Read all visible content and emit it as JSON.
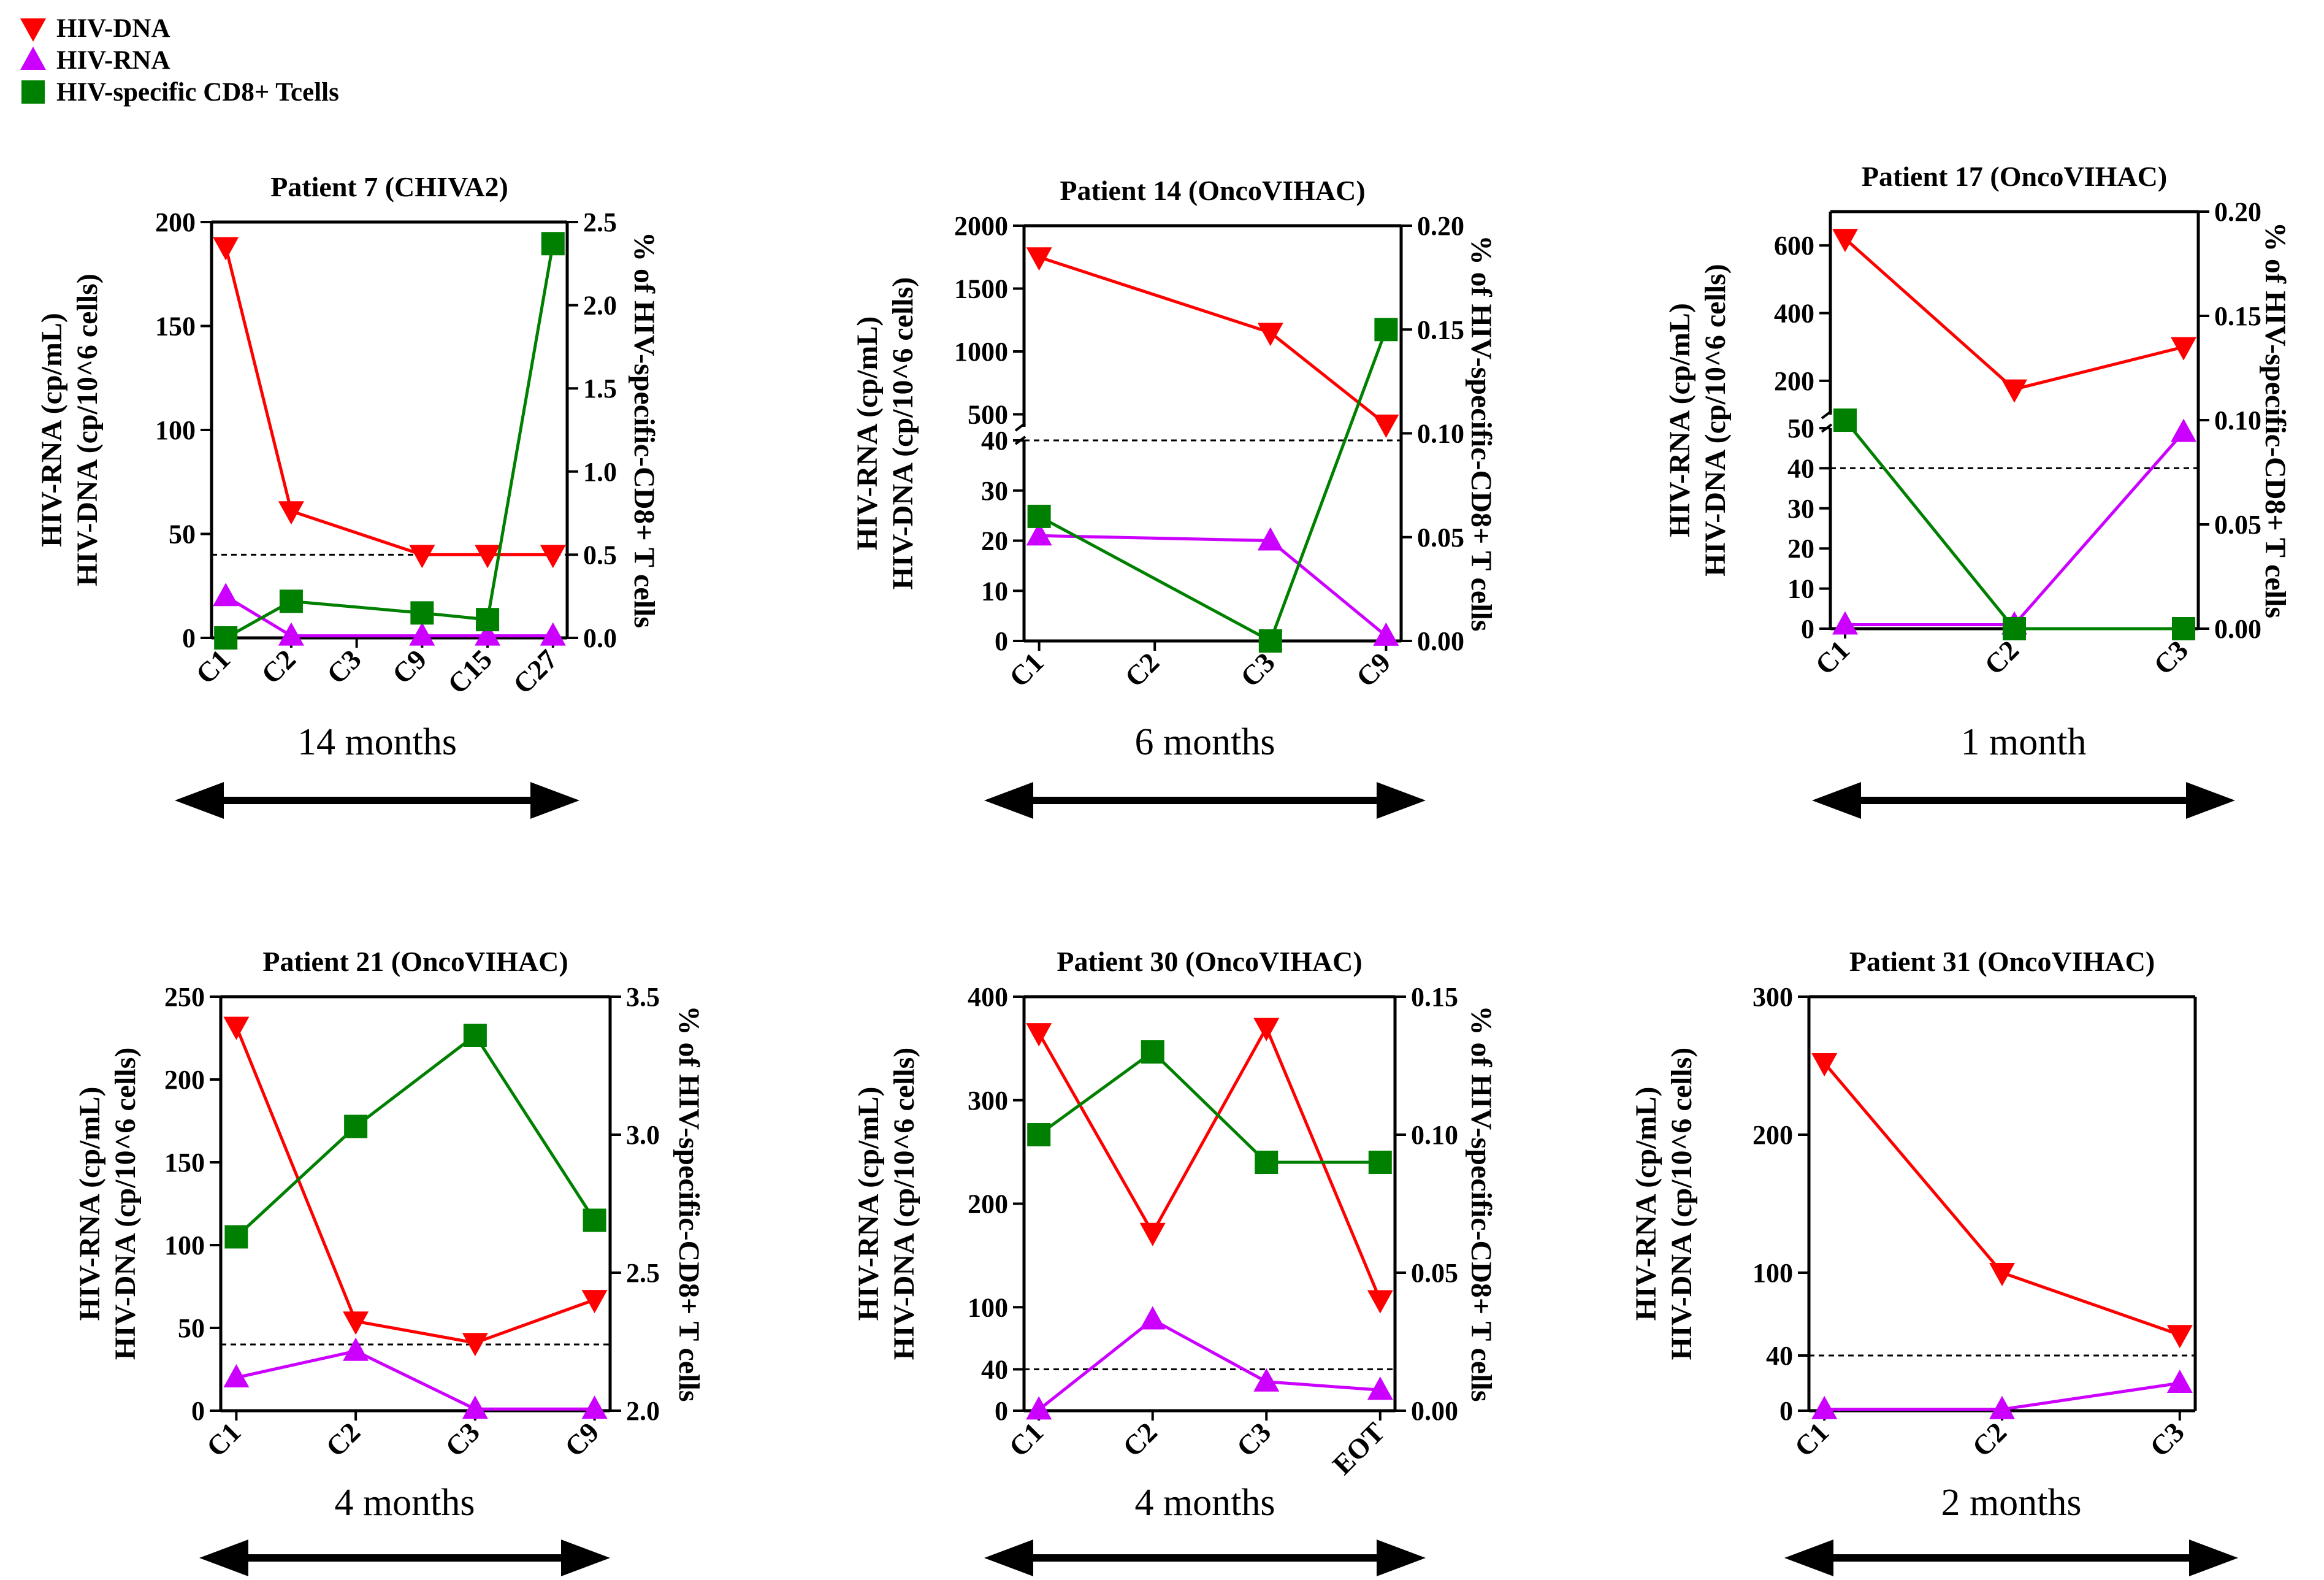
{
  "legend": [
    {
      "label": "HIV-DNA",
      "color": "#ff0000",
      "marker": "triangle-down"
    },
    {
      "label": "HIV-RNA",
      "color": "#cc00ff",
      "marker": "triangle-up"
    },
    {
      "label": "HIV-specific CD8+ Tcells",
      "color": "#008000",
      "marker": "square"
    }
  ],
  "chart_data": [
    {
      "type": "line",
      "title": "Patient 7 (CHIVA2)",
      "ylabel": [
        "HIV-RNA (cp/mL)",
        "HIV-DNA (cp/10^6 cells)"
      ],
      "y2label": "% of HIV-specific-CD8+ T cells",
      "categories": [
        "C1",
        "C2",
        "C3",
        "C9",
        "C15",
        "C27"
      ],
      "y_axis": {
        "broken": false,
        "ticks": [
          0,
          50,
          100,
          150,
          200
        ],
        "lim": [
          0,
          200
        ]
      },
      "y2_axis": {
        "ticks": [
          "0.0",
          "0.5",
          "1.0",
          "1.5",
          "2.0",
          "2.5"
        ],
        "lim": [
          0,
          2.5
        ]
      },
      "threshold": 40,
      "series": [
        {
          "name": "HIV-DNA",
          "axis": "left",
          "points": [
            [
              0,
              188
            ],
            [
              1,
              61
            ],
            [
              3,
              40
            ],
            [
              4,
              40
            ],
            [
              5,
              40
            ]
          ]
        },
        {
          "name": "HIV-RNA",
          "axis": "left",
          "points": [
            [
              0,
              20
            ],
            [
              1,
              1
            ],
            [
              3,
              1
            ],
            [
              4,
              1
            ],
            [
              5,
              1
            ]
          ]
        },
        {
          "name": "HIV-specific CD8+ Tcells",
          "axis": "right",
          "points": [
            [
              0,
              0.0
            ],
            [
              1,
              0.22
            ],
            [
              3,
              0.15
            ],
            [
              4,
              0.11
            ],
            [
              5,
              2.37
            ]
          ]
        }
      ],
      "duration": "14 months"
    },
    {
      "type": "line",
      "title": "Patient 14 (OncoVIHAC)",
      "ylabel": [
        "HIV-RNA (cp/mL)",
        "HIV-DNA (cp/10^6 cells)"
      ],
      "y2label": "% of HIV-specific-CD8+ T cells",
      "categories": [
        "C1",
        "C2",
        "C3",
        "C9"
      ],
      "y_axis": {
        "broken": true,
        "lower_ticks": [
          0,
          10,
          20,
          30,
          40
        ],
        "lower_lim": [
          0,
          40
        ],
        "upper_ticks": [
          500,
          1000,
          1500,
          2000
        ],
        "upper_lim": [
          400,
          2000
        ]
      },
      "y2_axis": {
        "ticks": [
          "0.00",
          "0.05",
          "0.10",
          "0.15",
          "0.20"
        ],
        "lim": [
          0,
          0.2
        ]
      },
      "threshold": 40,
      "series": [
        {
          "name": "HIV-DNA",
          "axis": "left",
          "points": [
            [
              0,
              1750
            ],
            [
              2,
              1150
            ],
            [
              3,
              420
            ]
          ]
        },
        {
          "name": "HIV-RNA",
          "axis": "left",
          "points": [
            [
              0,
              21
            ],
            [
              2,
              20
            ],
            [
              3,
              1
            ]
          ]
        },
        {
          "name": "HIV-specific CD8+ Tcells",
          "axis": "right",
          "points": [
            [
              0,
              0.06
            ],
            [
              2,
              0.0
            ],
            [
              3,
              0.15
            ]
          ]
        }
      ],
      "duration": "6 months"
    },
    {
      "type": "line",
      "title": "Patient 17 (OncoVIHAC)",
      "ylabel": [
        "HIV-RNA (cp/mL)",
        "HIV-DNA (cp/10^6 cells)"
      ],
      "y2label": "% of HIV-specific-CD8+ T cells",
      "categories": [
        "C1",
        "C2",
        "C3"
      ],
      "y_axis": {
        "broken": true,
        "lower_ticks": [
          0,
          10,
          20,
          30,
          40,
          50
        ],
        "lower_lim": [
          0,
          50
        ],
        "upper_ticks": [
          200,
          400,
          600
        ],
        "upper_lim": [
          100,
          700
        ]
      },
      "y2_axis": {
        "ticks": [
          "0.00",
          "0.05",
          "0.10",
          "0.15",
          "0.20"
        ],
        "lim": [
          0,
          0.2
        ]
      },
      "threshold": 40,
      "series": [
        {
          "name": "HIV-DNA",
          "axis": "left",
          "points": [
            [
              0,
              620
            ],
            [
              1,
              175
            ],
            [
              2,
              300
            ]
          ]
        },
        {
          "name": "HIV-RNA",
          "axis": "left",
          "points": [
            [
              0,
              1
            ],
            [
              1,
              1
            ],
            [
              2,
              49
            ]
          ]
        },
        {
          "name": "HIV-specific CD8+ Tcells",
          "axis": "right",
          "points": [
            [
              0,
              0.1
            ],
            [
              1,
              0.0
            ],
            [
              2,
              0.0
            ]
          ]
        }
      ],
      "duration": "1 month"
    },
    {
      "type": "line",
      "title": "Patient 21 (OncoVIHAC)",
      "ylabel": [
        "HIV-RNA (cp/mL)",
        "HIV-DNA (cp/10^6 cells)"
      ],
      "y2label": "% of HIV-specific-CD8+ T cells",
      "categories": [
        "C1",
        "C2",
        "C3",
        "C9"
      ],
      "y_axis": {
        "broken": false,
        "ticks": [
          0,
          50,
          100,
          150,
          200,
          250
        ],
        "lim": [
          0,
          250
        ]
      },
      "y2_axis": {
        "ticks": [
          "2.0",
          "2.5",
          "3.0",
          "3.5"
        ],
        "lim": [
          2.0,
          3.5
        ]
      },
      "threshold": 40,
      "series": [
        {
          "name": "HIV-DNA",
          "axis": "left",
          "points": [
            [
              0,
              232
            ],
            [
              1,
              54
            ],
            [
              2,
              41
            ],
            [
              3,
              67
            ]
          ]
        },
        {
          "name": "HIV-RNA",
          "axis": "left",
          "points": [
            [
              0,
              20
            ],
            [
              1,
              36
            ],
            [
              2,
              1
            ],
            [
              3,
              1
            ]
          ]
        },
        {
          "name": "HIV-specific CD8+ Tcells",
          "axis": "right",
          "points": [
            [
              0,
              2.63
            ],
            [
              1,
              3.03
            ],
            [
              2,
              3.36
            ],
            [
              3,
              2.69
            ]
          ]
        }
      ],
      "duration": "4 months"
    },
    {
      "type": "line",
      "title": "Patient 30 (OncoVIHAC)",
      "ylabel": [
        "HIV-RNA (cp/mL)",
        "HIV-DNA (cp/10^6 cells)"
      ],
      "y2label": "% of HIV-specific-CD8+ T cells",
      "categories": [
        "C1",
        "C2",
        "C3",
        "EOT"
      ],
      "y_axis": {
        "broken": false,
        "ticks": [
          0,
          40,
          100,
          200,
          300,
          400
        ],
        "lim": [
          0,
          400
        ]
      },
      "y2_axis": {
        "ticks": [
          "0.00",
          "0.05",
          "0.10",
          "0.15"
        ],
        "lim": [
          0,
          0.15
        ]
      },
      "threshold": 40,
      "series": [
        {
          "name": "HIV-DNA",
          "axis": "left",
          "points": [
            [
              0,
              365
            ],
            [
              1,
              172
            ],
            [
              2,
              370
            ],
            [
              3,
              107
            ]
          ]
        },
        {
          "name": "HIV-RNA",
          "axis": "left",
          "points": [
            [
              0,
              1
            ],
            [
              1,
              88
            ],
            [
              2,
              28
            ],
            [
              3,
              20
            ]
          ]
        },
        {
          "name": "HIV-specific CD8+ Tcells",
          "axis": "right",
          "points": [
            [
              0,
              0.1
            ],
            [
              1,
              0.13
            ],
            [
              2,
              0.09
            ],
            [
              3,
              0.09
            ]
          ]
        }
      ],
      "duration": "4 months"
    },
    {
      "type": "line",
      "title": "Patient 31 (OncoVIHAC)",
      "ylabel": [
        "HIV-RNA (cp/mL)",
        "HIV-DNA (cp/10^6 cells)"
      ],
      "y2label": "",
      "categories": [
        "C1",
        "C2",
        "C3"
      ],
      "y_axis": {
        "broken": false,
        "ticks": [
          0,
          40,
          100,
          200,
          300
        ],
        "lim": [
          0,
          300
        ]
      },
      "y2_axis": null,
      "threshold": 40,
      "series": [
        {
          "name": "HIV-DNA",
          "axis": "left",
          "points": [
            [
              0,
              252
            ],
            [
              1,
              100
            ],
            [
              2,
              55
            ]
          ]
        },
        {
          "name": "HIV-RNA",
          "axis": "left",
          "points": [
            [
              0,
              1
            ],
            [
              1,
              1
            ],
            [
              2,
              20
            ]
          ]
        }
      ],
      "duration": "2 months"
    }
  ]
}
